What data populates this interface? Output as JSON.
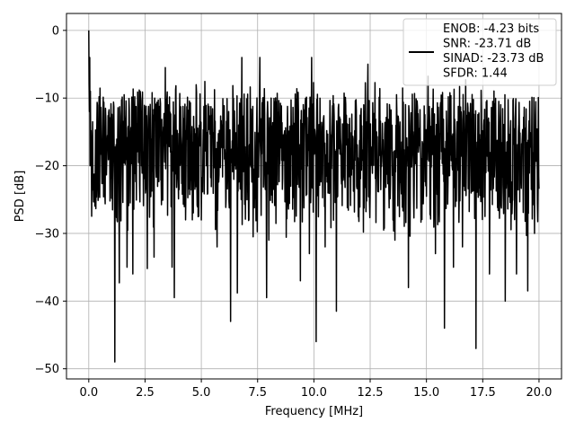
{
  "chart_data": {
    "type": "line",
    "title": "",
    "xlabel": "Frequency [MHz]",
    "ylabel": "PSD [dB]",
    "xlim": [
      -0.99,
      21.0
    ],
    "ylim": [
      -51.5,
      2.5
    ],
    "x_ticks": [
      0.0,
      2.5,
      5.0,
      7.5,
      10.0,
      12.5,
      15.0,
      17.5,
      20.0
    ],
    "x_tick_labels": [
      "0.0",
      "2.5",
      "5.0",
      "7.5",
      "10.0",
      "12.5",
      "15.0",
      "17.5",
      "20.0"
    ],
    "y_ticks": [
      0,
      -10,
      -20,
      -30,
      -40,
      -50
    ],
    "y_tick_labels": [
      "0",
      "−10",
      "−20",
      "−30",
      "−40",
      "−50"
    ],
    "grid": true,
    "legend_position": "upper-right",
    "series": [
      {
        "name": "ENOB: -4.23 bits\nSNR: -23.71 dB\nSINAD: -23.73 dB\nSFDR: 1.44",
        "color": "#000000",
        "x_range": [
          0.0,
          20.0
        ],
        "baseline_db": -17.5,
        "upper_envelope_db": -8.0,
        "lower_envelope_db": -30.0,
        "peaks": [
          {
            "x": 0.0,
            "y": 0.0
          },
          {
            "x": 3.4,
            "y": -5.5
          },
          {
            "x": 6.8,
            "y": -4.0
          },
          {
            "x": 7.6,
            "y": -4.0
          },
          {
            "x": 9.9,
            "y": -4.0
          },
          {
            "x": 11.0,
            "y": -4.5
          },
          {
            "x": 12.4,
            "y": -5.0
          }
        ],
        "dips": [
          {
            "x": 1.15,
            "y": -49.0
          },
          {
            "x": 1.35,
            "y": -37.3
          },
          {
            "x": 1.7,
            "y": -35.0
          },
          {
            "x": 1.95,
            "y": -36.0
          },
          {
            "x": 2.6,
            "y": -35.2
          },
          {
            "x": 2.9,
            "y": -33.5
          },
          {
            "x": 3.7,
            "y": -35.0
          },
          {
            "x": 3.8,
            "y": -39.5
          },
          {
            "x": 4.3,
            "y": -28.0
          },
          {
            "x": 4.6,
            "y": -28.0
          },
          {
            "x": 5.7,
            "y": -32.0
          },
          {
            "x": 6.3,
            "y": -43.0
          },
          {
            "x": 6.6,
            "y": -38.8
          },
          {
            "x": 7.3,
            "y": -30.5
          },
          {
            "x": 7.9,
            "y": -39.5
          },
          {
            "x": 8.0,
            "y": -31.0
          },
          {
            "x": 9.4,
            "y": -37.0
          },
          {
            "x": 9.8,
            "y": -33.0
          },
          {
            "x": 10.1,
            "y": -46.0
          },
          {
            "x": 10.5,
            "y": -32.0
          },
          {
            "x": 11.0,
            "y": -41.5
          },
          {
            "x": 12.2,
            "y": -29.8
          },
          {
            "x": 13.1,
            "y": -29.5
          },
          {
            "x": 13.6,
            "y": -31.0
          },
          {
            "x": 14.2,
            "y": -38.0
          },
          {
            "x": 15.4,
            "y": -33.0
          },
          {
            "x": 15.8,
            "y": -44.0
          },
          {
            "x": 16.2,
            "y": -35.0
          },
          {
            "x": 16.6,
            "y": -32.0
          },
          {
            "x": 17.2,
            "y": -47.0
          },
          {
            "x": 17.8,
            "y": -36.0
          },
          {
            "x": 18.5,
            "y": -40.0
          },
          {
            "x": 19.0,
            "y": -36.0
          },
          {
            "x": 19.5,
            "y": -38.5
          },
          {
            "x": 19.8,
            "y": -30.0
          }
        ]
      }
    ]
  }
}
